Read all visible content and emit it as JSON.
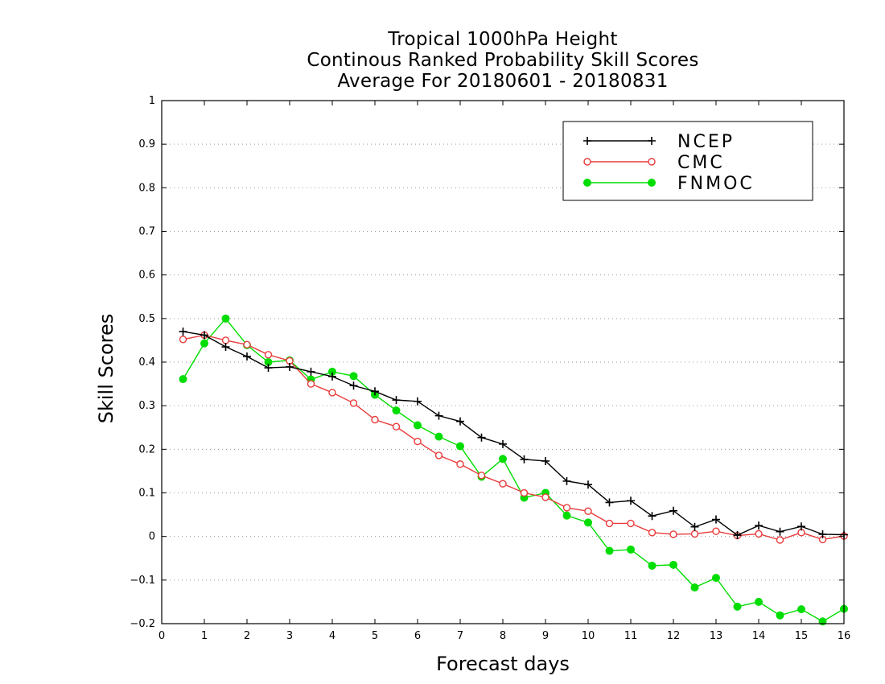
{
  "chart_data": {
    "type": "line",
    "title": [
      "Tropical 1000hPa Height",
      "Continous Ranked Probability Skill Scores",
      "Average For 20180601 - 20180831"
    ],
    "xlabel": "Forecast days",
    "ylabel": "Skill Scores",
    "xlim": [
      0,
      16
    ],
    "ylim": [
      -0.2,
      1
    ],
    "xticks": [
      "0",
      "1",
      "2",
      "3",
      "4",
      "5",
      "6",
      "7",
      "8",
      "9",
      "10",
      "11",
      "12",
      "13",
      "14",
      "15",
      "16"
    ],
    "yticks": [
      "−0.2",
      "−0.1",
      "0",
      "0.1",
      "0.2",
      "0.3",
      "0.4",
      "0.5",
      "0.6",
      "0.7",
      "0.8",
      "0.9",
      "1"
    ],
    "grid": "horizontal dotted",
    "legend_position": "top-right",
    "x": [
      0.5,
      1,
      1.5,
      2,
      2.5,
      3,
      3.5,
      4,
      4.5,
      5,
      5.5,
      6,
      6.5,
      7,
      7.5,
      8,
      8.5,
      9,
      9.5,
      10,
      10.5,
      11,
      11.5,
      12,
      12.5,
      13,
      13.5,
      14,
      14.5,
      15,
      15.5,
      16
    ],
    "series": [
      {
        "name": "NCEP",
        "color": "#000000",
        "marker": "plus",
        "values": [
          0.47,
          0.462,
          0.435,
          0.413,
          0.387,
          0.389,
          0.378,
          0.367,
          0.346,
          0.333,
          0.313,
          0.31,
          0.277,
          0.264,
          0.227,
          0.212,
          0.177,
          0.173,
          0.127,
          0.119,
          0.078,
          0.082,
          0.047,
          0.059,
          0.022,
          0.039,
          0.003,
          0.025,
          0.011,
          0.023,
          0.005,
          0.004
        ]
      },
      {
        "name": "CMC",
        "color": "#e83c3c",
        "marker": "open-circle",
        "values": [
          0.452,
          0.462,
          0.45,
          0.44,
          0.417,
          0.403,
          0.35,
          0.33,
          0.306,
          0.268,
          0.252,
          0.218,
          0.186,
          0.166,
          0.14,
          0.121,
          0.1,
          0.09,
          0.066,
          0.058,
          0.03,
          0.03,
          0.009,
          0.005,
          0.006,
          0.012,
          0.002,
          0.006,
          -0.008,
          0.009,
          -0.007,
          0.001
        ]
      },
      {
        "name": "FNMOC",
        "color": "#00dd00",
        "marker": "filled-circle",
        "values": [
          0.361,
          0.443,
          0.5,
          0.439,
          0.4,
          0.404,
          0.36,
          0.378,
          0.368,
          0.325,
          0.289,
          0.255,
          0.229,
          0.207,
          0.137,
          0.178,
          0.089,
          0.1,
          0.048,
          0.032,
          -0.033,
          -0.03,
          -0.067,
          -0.065,
          -0.117,
          -0.095,
          -0.161,
          -0.15,
          -0.181,
          -0.167,
          -0.195,
          -0.166
        ]
      }
    ]
  }
}
